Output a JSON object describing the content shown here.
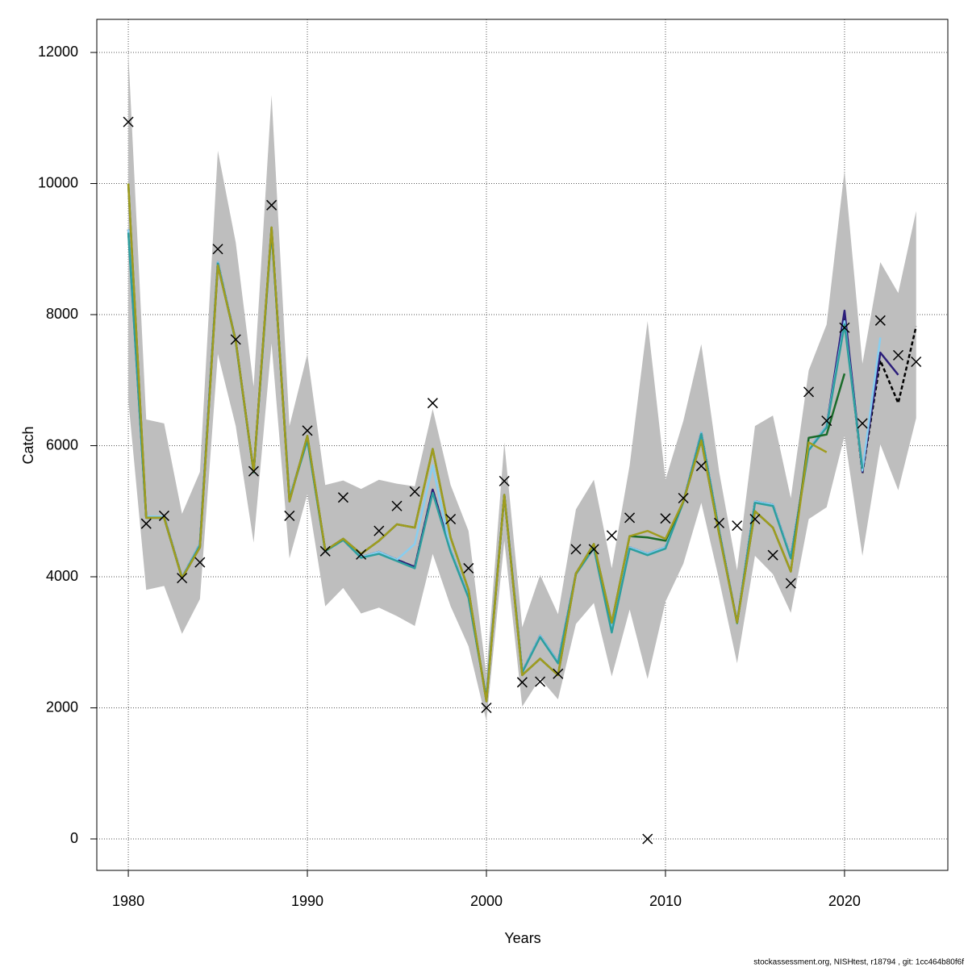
{
  "chart_data": {
    "type": "line",
    "xlabel": "Years",
    "ylabel": "Catch",
    "footnote": "stockassessment.org, NISHtest, r18794 , git: 1cc464b80f6f",
    "x": [
      1980,
      1981,
      1982,
      1983,
      1984,
      1985,
      1986,
      1987,
      1988,
      1989,
      1990,
      1991,
      1992,
      1993,
      1994,
      1995,
      1996,
      1997,
      1998,
      1999,
      2000,
      2001,
      2002,
      2003,
      2004,
      2005,
      2006,
      2007,
      2008,
      2009,
      2010,
      2011,
      2012,
      2013,
      2014,
      2015,
      2016,
      2017,
      2018,
      2019,
      2020,
      2021,
      2022,
      2023,
      2024
    ],
    "observed": {
      "color": "#000000",
      "values": [
        10940,
        4810,
        4930,
        3980,
        4220,
        9000,
        7620,
        5610,
        9670,
        4930,
        6230,
        4390,
        5210,
        4340,
        4700,
        5080,
        5300,
        6650,
        4880,
        4130,
        2000,
        5460,
        2390,
        2400,
        2520,
        4420,
        4420,
        4630,
        4900,
        0,
        4890,
        5200,
        5690,
        4820,
        4780,
        4880,
        4330,
        3900,
        6820,
        6380,
        7800,
        6340,
        7910,
        7380,
        7280
      ]
    },
    "band": {
      "color": "#bebebe",
      "upper": [
        12000,
        6400,
        6340,
        4960,
        5600,
        10500,
        9100,
        6900,
        11350,
        6300,
        7400,
        5400,
        5470,
        5340,
        5480,
        5420,
        5380,
        6560,
        5400,
        4700,
        2500,
        6050,
        3230,
        4030,
        3430,
        5030,
        5480,
        4130,
        5700,
        7900,
        5480,
        6380,
        7550,
        5600,
        4100,
        6300,
        6460,
        5200,
        7150,
        7850,
        10200,
        7250,
        8800,
        8330,
        9580
      ],
      "lower": [
        6700,
        3800,
        3860,
        3130,
        3660,
        7400,
        6300,
        4520,
        7560,
        4280,
        5260,
        3550,
        3830,
        3440,
        3530,
        3400,
        3250,
        4350,
        3550,
        2940,
        1800,
        4550,
        2020,
        2450,
        2130,
        3280,
        3600,
        2480,
        3500,
        2440,
        3620,
        4200,
        5130,
        3950,
        2680,
        4320,
        4040,
        3450,
        4880,
        5060,
        6150,
        4320,
        6020,
        5320,
        6420
      ]
    },
    "series": [
      {
        "color": "#000000",
        "dashed": true,
        "values": [
          9300,
          4920,
          4920,
          3990,
          4500,
          8800,
          7600,
          5600,
          9300,
          5200,
          6100,
          4400,
          4570,
          4300,
          4380,
          4260,
          4150,
          5330,
          4400,
          3700,
          2150,
          5250,
          2550,
          3100,
          2700,
          4050,
          4450,
          3200,
          4450,
          4350,
          4450,
          5150,
          6200,
          4700,
          3300,
          5150,
          5100,
          4300,
          5950,
          6300,
          7950,
          5580,
          7300,
          6650,
          7820
        ]
      },
      {
        "color": "#2b1d7a",
        "values": [
          9300,
          4920,
          4920,
          3990,
          4500,
          8800,
          7600,
          5600,
          9300,
          5200,
          6100,
          4400,
          4570,
          4300,
          4380,
          4260,
          4150,
          5330,
          4400,
          3700,
          2150,
          5250,
          2550,
          3100,
          2700,
          4050,
          4450,
          3200,
          4450,
          4350,
          4450,
          5150,
          6200,
          4700,
          3300,
          5150,
          5100,
          4300,
          5950,
          6300,
          8060,
          5600,
          7420,
          7080,
          null
        ]
      },
      {
        "color": "#87cef0",
        "values": [
          9300,
          4920,
          4920,
          3990,
          4500,
          8800,
          7600,
          5600,
          9300,
          5200,
          6100,
          4400,
          4570,
          4300,
          4380,
          4260,
          4500,
          5700,
          4400,
          3700,
          2150,
          5250,
          2550,
          3100,
          2700,
          4050,
          4450,
          3200,
          4450,
          4350,
          4450,
          5150,
          6200,
          4700,
          3300,
          5150,
          5100,
          4300,
          5950,
          6300,
          7900,
          5620,
          7650,
          null,
          null
        ]
      },
      {
        "color": "#2e9e9e",
        "values": [
          9250,
          4900,
          4900,
          3980,
          4480,
          8780,
          7580,
          5590,
          9280,
          5180,
          6080,
          4390,
          4560,
          4290,
          4350,
          4240,
          4130,
          5280,
          4380,
          3680,
          2140,
          5240,
          2540,
          3080,
          2680,
          4040,
          4440,
          3150,
          4430,
          4330,
          4430,
          5140,
          6180,
          4690,
          3290,
          5130,
          5080,
          4280,
          5930,
          6280,
          7850,
          5650,
          null,
          null,
          null
        ]
      },
      {
        "color": "#1a6b2a",
        "values": [
          10000,
          4900,
          4900,
          3980,
          4450,
          8750,
          7600,
          5600,
          9330,
          5150,
          6150,
          4400,
          4580,
          4350,
          4550,
          4800,
          4750,
          5950,
          4600,
          3800,
          2100,
          5250,
          2500,
          2750,
          2500,
          4050,
          4500,
          3300,
          4620,
          4600,
          4550,
          5150,
          6080,
          4650,
          3300,
          5000,
          4750,
          4080,
          6120,
          6170,
          7100,
          null,
          null,
          null,
          null
        ]
      },
      {
        "color": "#a09c1e",
        "values": [
          10000,
          4900,
          4900,
          3980,
          4450,
          8750,
          7600,
          5600,
          9330,
          5150,
          6150,
          4400,
          4580,
          4350,
          4550,
          4800,
          4750,
          5950,
          4600,
          3800,
          2100,
          5250,
          2500,
          2750,
          2500,
          4050,
          4500,
          3300,
          4620,
          4700,
          4580,
          5150,
          6080,
          4650,
          3300,
          5000,
          4750,
          4080,
          6050,
          5900,
          null,
          null,
          null,
          null,
          null
        ]
      }
    ],
    "xlim": [
      1978.24,
      2025.77
    ],
    "ylim": [
      -480,
      12505
    ],
    "xticks": [
      1980,
      1990,
      2000,
      2010,
      2020
    ],
    "yticks": [
      0,
      2000,
      4000,
      6000,
      8000,
      10000,
      12000
    ],
    "grid": true
  }
}
